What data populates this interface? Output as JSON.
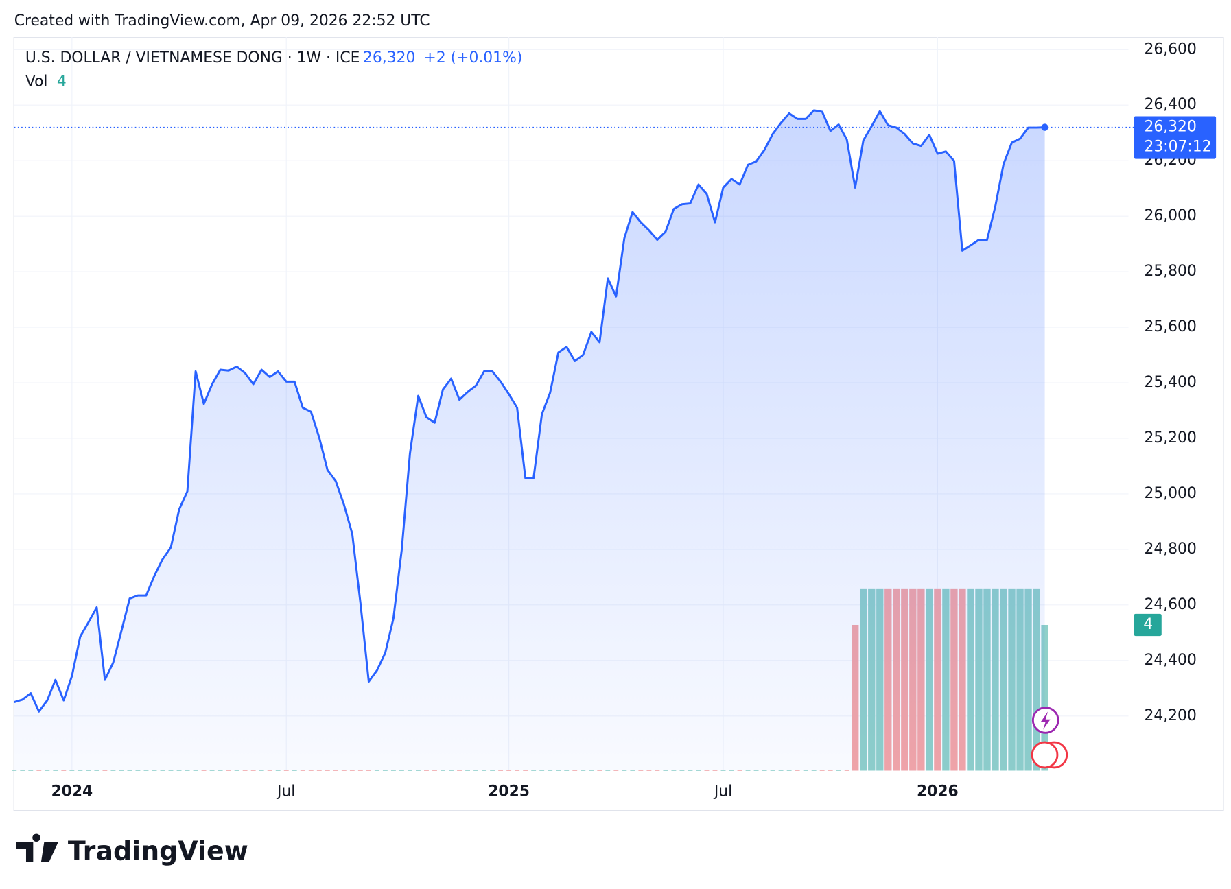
{
  "header": {
    "created": "Created with TradingView.com, Apr 09, 2026 22:52 UTC"
  },
  "chart_data": {
    "type": "line",
    "title": "U.S. DOLLAR / VIETNAMESE DONG · 1W · ICE",
    "last_label": "26,320",
    "change": "+2 (+0.01%)",
    "countdown": "23:07:12",
    "color": "#2962ff",
    "categories": [
      null,
      null,
      null,
      null,
      null,
      null,
      null,
      "2024",
      null,
      null,
      null,
      null,
      null,
      null,
      null,
      null,
      null,
      null,
      null,
      null,
      null,
      null,
      null,
      null,
      null,
      null,
      null,
      null,
      null,
      null,
      null,
      null,
      null,
      "Jul",
      null,
      null,
      null,
      null,
      null,
      null,
      null,
      null,
      null,
      null,
      null,
      null,
      null,
      null,
      null,
      null,
      null,
      null,
      null,
      null,
      null,
      null,
      null,
      null,
      null,
      null,
      "2025",
      null,
      null,
      null,
      null,
      null,
      null,
      null,
      null,
      null,
      null,
      null,
      null,
      null,
      null,
      null,
      null,
      null,
      null,
      null,
      null,
      null,
      null,
      null,
      null,
      null,
      "Jul",
      null,
      null,
      null,
      null,
      null,
      null,
      null,
      null,
      null,
      null,
      null,
      null,
      null,
      null,
      null,
      null,
      null,
      null,
      null,
      null,
      null,
      null,
      null,
      null,
      null,
      "2026",
      null,
      null,
      null,
      null,
      null,
      null,
      null,
      null,
      null,
      null,
      null,
      null,
      null
    ],
    "values": [
      24250,
      24259,
      24282,
      24216,
      24256,
      24330,
      24256,
      24344,
      24486,
      24537,
      24591,
      24330,
      24392,
      24506,
      24623,
      24634,
      24634,
      24705,
      24765,
      24807,
      24944,
      25009,
      25441,
      25324,
      25395,
      25447,
      25444,
      25458,
      25435,
      25395,
      25447,
      25421,
      25441,
      25404,
      25404,
      25310,
      25296,
      25202,
      25086,
      25046,
      24961,
      24856,
      24606,
      24324,
      24364,
      24427,
      24552,
      24799,
      25145,
      25353,
      25276,
      25256,
      25376,
      25415,
      25339,
      25367,
      25390,
      25441,
      25441,
      25404,
      25359,
      25310,
      25057,
      25057,
      25287,
      25364,
      25509,
      25529,
      25478,
      25500,
      25583,
      25546,
      25776,
      25711,
      25921,
      26015,
      25978,
      25949,
      25915,
      25944,
      26026,
      26043,
      26046,
      26114,
      26080,
      25978,
      26103,
      26134,
      26114,
      26185,
      26197,
      26239,
      26296,
      26336,
      26370,
      26350,
      26350,
      26381,
      26376,
      26307,
      26330,
      26276,
      26103,
      26273,
      26324,
      26378,
      26327,
      26319,
      26296,
      26262,
      26253,
      26293,
      26225,
      26233,
      26199,
      25876,
      25895,
      25915,
      25915,
      26035,
      26188,
      26265,
      26279,
      26319,
      26319,
      26320
    ],
    "volume": {
      "name": "Vol",
      "up_color": "#8fd0c9",
      "down_color": "#f4a5a6",
      "values": [
        0,
        0,
        0,
        0,
        0,
        0,
        0,
        0,
        0,
        0,
        0,
        0,
        0,
        0,
        0,
        0,
        0,
        0,
        0,
        0,
        0,
        0,
        0,
        0,
        0,
        0,
        0,
        0,
        0,
        0,
        0,
        0,
        0,
        0,
        0,
        0,
        0,
        0,
        0,
        0,
        0,
        0,
        0,
        0,
        0,
        0,
        0,
        0,
        0,
        0,
        0,
        0,
        0,
        0,
        0,
        0,
        0,
        0,
        0,
        0,
        0,
        0,
        0,
        0,
        0,
        0,
        0,
        0,
        0,
        0,
        0,
        0,
        0,
        0,
        0,
        0,
        0,
        0,
        0,
        0,
        0,
        0,
        0,
        0,
        0,
        0,
        0,
        0,
        0,
        0,
        0,
        0,
        0,
        0,
        0,
        0,
        0,
        0,
        0,
        0,
        0,
        0,
        4,
        5,
        5,
        5,
        5,
        5,
        5,
        5,
        5,
        5,
        5,
        5,
        5,
        5,
        5,
        5,
        5,
        5,
        5,
        5,
        5,
        5,
        5,
        4
      ]
    },
    "ylim": [
      24003,
      26645
    ],
    "yticks": [
      {
        "value": 24200,
        "label": "24,200"
      },
      {
        "value": 24400,
        "label": "24,400"
      },
      {
        "value": 24600,
        "label": "24,600"
      },
      {
        "value": 24800,
        "label": "24,800"
      },
      {
        "value": 25000,
        "label": "25,000"
      },
      {
        "value": 25200,
        "label": "25,200"
      },
      {
        "value": 25400,
        "label": "25,400"
      },
      {
        "value": 25600,
        "label": "25,600"
      },
      {
        "value": 25800,
        "label": "25,800"
      },
      {
        "value": 26000,
        "label": "26,000"
      },
      {
        "value": 26200,
        "label": "26,200"
      },
      {
        "value": 26400,
        "label": "26,400"
      },
      {
        "value": 26600,
        "label": "26,600"
      }
    ],
    "y2lim": [
      0,
      5
    ],
    "grid": true
  },
  "footer": {
    "brand": "TradingView"
  }
}
